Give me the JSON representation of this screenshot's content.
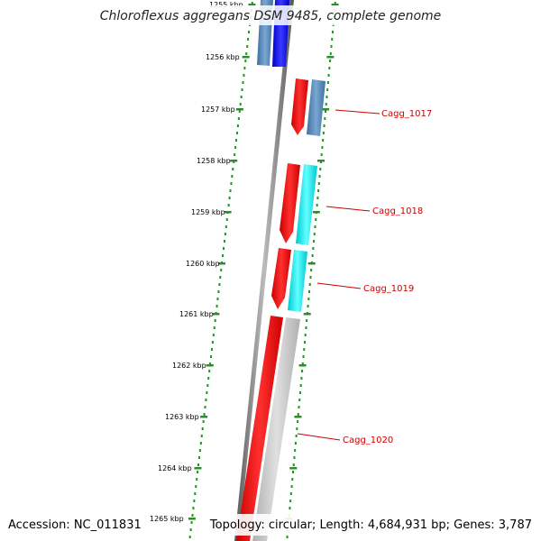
{
  "title": "Chloroflexus aggregans DSM 9485, complete genome",
  "footer": {
    "accession": "Accession: NC_011831",
    "summary": "Topology: circular; Length: 4,684,931 bp; Genes: 3,787"
  },
  "colors": {
    "scale_dots": "#2e8b2e",
    "backbone": "#777777",
    "cds_forward_red": "#ff0000",
    "cds_reverse_blue": "#4a7fb5",
    "cds_reverse_cyan": "#00e5ee",
    "cds_reverse_gray": "#c8c8c8",
    "cds_dark_blue": "#0000ee",
    "label_red": "#cc0000"
  },
  "scale_ticks": [
    {
      "label": "1255 kbp"
    },
    {
      "label": "1256 kbp"
    },
    {
      "label": "1257 kbp"
    },
    {
      "label": "1258 kbp"
    },
    {
      "label": "1259 kbp"
    },
    {
      "label": "1260 kbp"
    },
    {
      "label": "1261 kbp"
    },
    {
      "label": "1262 kbp"
    },
    {
      "label": "1263 kbp"
    },
    {
      "label": "1264 kbp"
    },
    {
      "label": "1265 kbp"
    }
  ],
  "genes": [
    {
      "label": "Cagg_1017"
    },
    {
      "label": "Cagg_1018"
    },
    {
      "label": "Cagg_1019"
    },
    {
      "label": "Cagg_1020"
    }
  ]
}
